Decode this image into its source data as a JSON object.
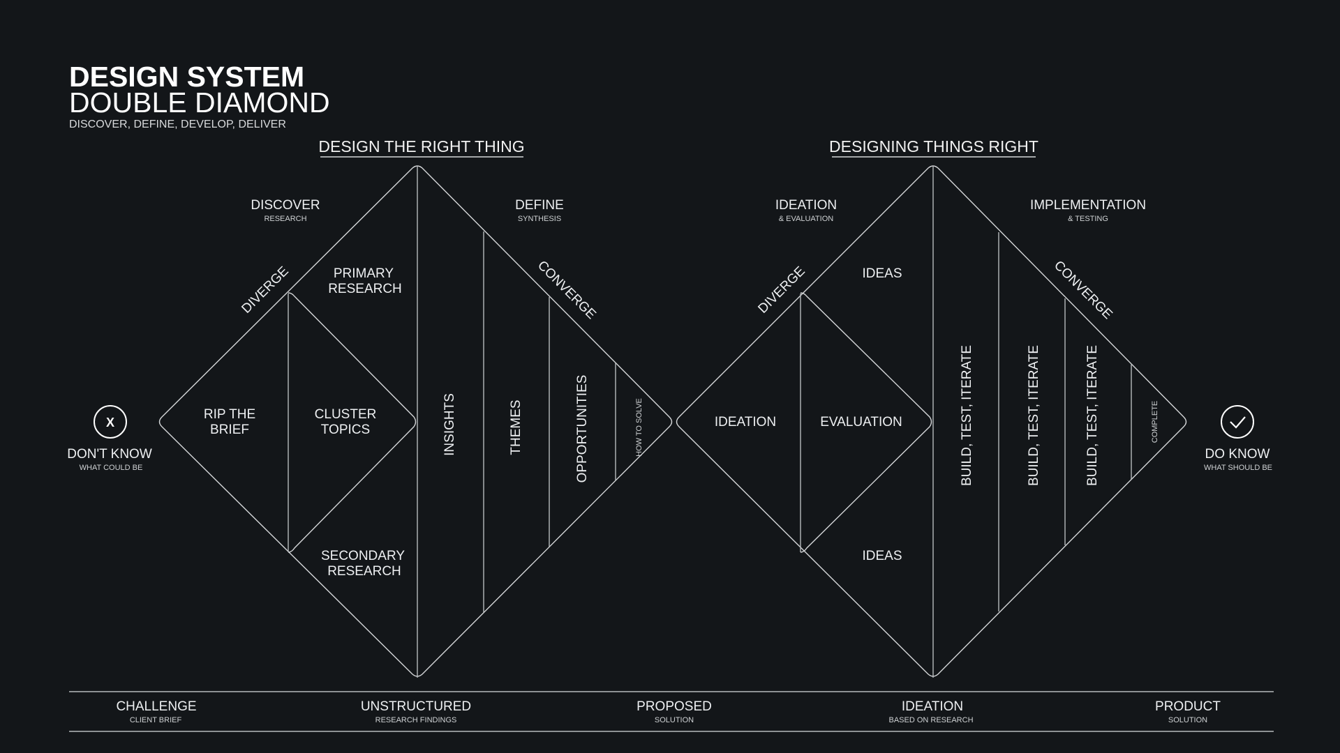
{
  "header": {
    "title": "DESIGN SYSTEM",
    "subtitle": "DOUBLE DIAMOND",
    "tagline": "DISCOVER, DEFINE, DEVELOP, DELIVER"
  },
  "sections": [
    {
      "title": "DESIGN THE RIGHT THING"
    },
    {
      "title": "DESIGNING THINGS RIGHT"
    }
  ],
  "phases": [
    {
      "label": "DISCOVER",
      "sub": "RESEARCH"
    },
    {
      "label": "DEFINE",
      "sub": "SYNTHESIS"
    },
    {
      "label": "IDEATION",
      "sub": "& EVALUATION"
    },
    {
      "label": "IMPLEMENTATION",
      "sub": "& TESTING"
    }
  ],
  "edges": {
    "diverge": "DIVERGE",
    "converge": "CONVERGE"
  },
  "diamond1": {
    "primary": [
      "PRIMARY",
      "RESEARCH"
    ],
    "secondary": [
      "SECONDARY",
      "RESEARCH"
    ],
    "rip": [
      "RIP THE",
      "BRIEF"
    ],
    "cluster": [
      "CLUSTER",
      "TOPICS"
    ],
    "insights": "INSIGHTS",
    "themes": "THEMES",
    "opportunities": "OPPORTUNITIES",
    "how_to_solve": "HOW TO SOLVE"
  },
  "diamond2": {
    "ideas_top": "IDEAS",
    "ideas_bottom": "IDEAS",
    "ideation": "IDEATION",
    "evaluation": "EVALUATION",
    "build": [
      "BUILD, TEST, ITERATE",
      "BUILD, TEST, ITERATE",
      "BUILD, TEST, ITERATE"
    ],
    "complete": "COMPLETE"
  },
  "start": {
    "icon": "x-circle-icon",
    "glyph": "X",
    "label": "DON'T KNOW",
    "sub": "WHAT COULD BE"
  },
  "end": {
    "icon": "check-circle-icon",
    "label": "DO KNOW",
    "sub": "WHAT SHOULD BE"
  },
  "footer": [
    {
      "label": "CHALLENGE",
      "sub": "CLIENT BRIEF"
    },
    {
      "label": "UNSTRUCTURED",
      "sub": "RESEARCH FINDINGS"
    },
    {
      "label": "PROPOSED",
      "sub": "SOLUTION"
    },
    {
      "label": "IDEATION",
      "sub": "BASED ON RESEARCH"
    },
    {
      "label": "PRODUCT",
      "sub": "SOLUTION"
    }
  ],
  "colors": {
    "background": "#131619",
    "foreground": "#ffffff",
    "line": "#d5d7d9"
  }
}
